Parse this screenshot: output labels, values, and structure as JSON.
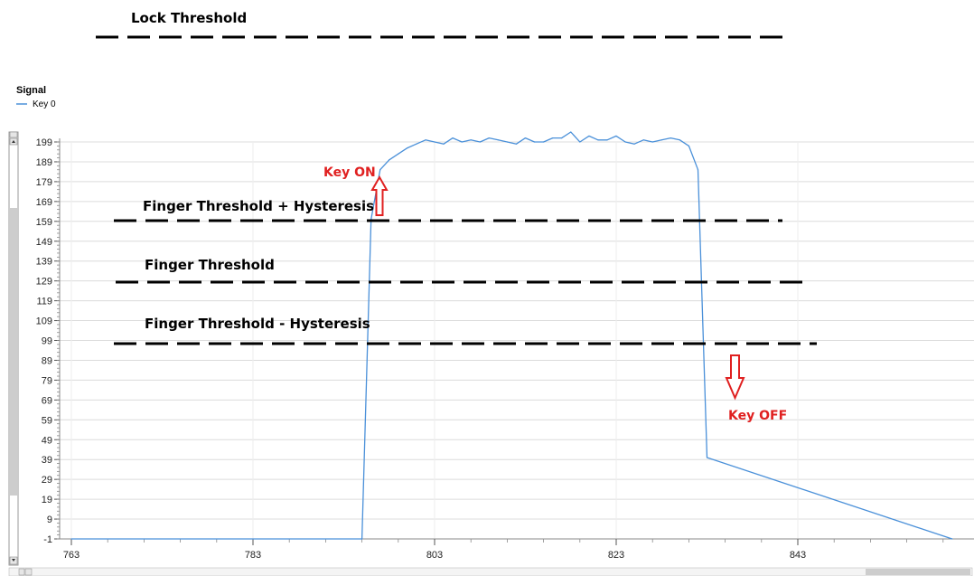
{
  "chart_data": {
    "type": "line",
    "legend_title": "Signal",
    "series": [
      {
        "name": "Key 0",
        "color": "#4a90d9",
        "x": [
          763,
          795,
          796,
          797,
          798,
          799,
          800,
          801,
          802,
          803,
          804,
          805,
          806,
          807,
          808,
          809,
          810,
          811,
          812,
          813,
          814,
          815,
          816,
          817,
          818,
          819,
          820,
          821,
          822,
          823,
          824,
          825,
          826,
          827,
          828,
          829,
          830,
          831,
          832,
          833,
          860
        ],
        "y": [
          -1,
          -1,
          160,
          185,
          190,
          193,
          196,
          198,
          200,
          199,
          198,
          201,
          199,
          200,
          199,
          201,
          200,
          199,
          198,
          201,
          199,
          199,
          201,
          201,
          204,
          199,
          202,
          200,
          200,
          202,
          199,
          198,
          200,
          199,
          200,
          201,
          200,
          197,
          185,
          40,
          -1
        ]
      }
    ],
    "x_ticks": [
      "763",
      "783",
      "803",
      "823",
      "843"
    ],
    "y_ticks": [
      "199",
      "189",
      "179",
      "169",
      "159",
      "149",
      "139",
      "129",
      "119",
      "109",
      "99",
      "89",
      "79",
      "69",
      "59",
      "49",
      "39",
      "29",
      "19",
      "9",
      "-1"
    ],
    "xlim": [
      763,
      860
    ],
    "ylim": [
      -1,
      199
    ],
    "grid": true,
    "thresholds": [
      {
        "label": "Lock Threshold"
      },
      {
        "label": "Finger Threshold + Hysteresis"
      },
      {
        "label": "Finger Threshold"
      },
      {
        "label": "Finger Threshold - Hysteresis"
      }
    ],
    "annotations": {
      "key_on": "Key ON",
      "key_off": "Key OFF"
    }
  }
}
